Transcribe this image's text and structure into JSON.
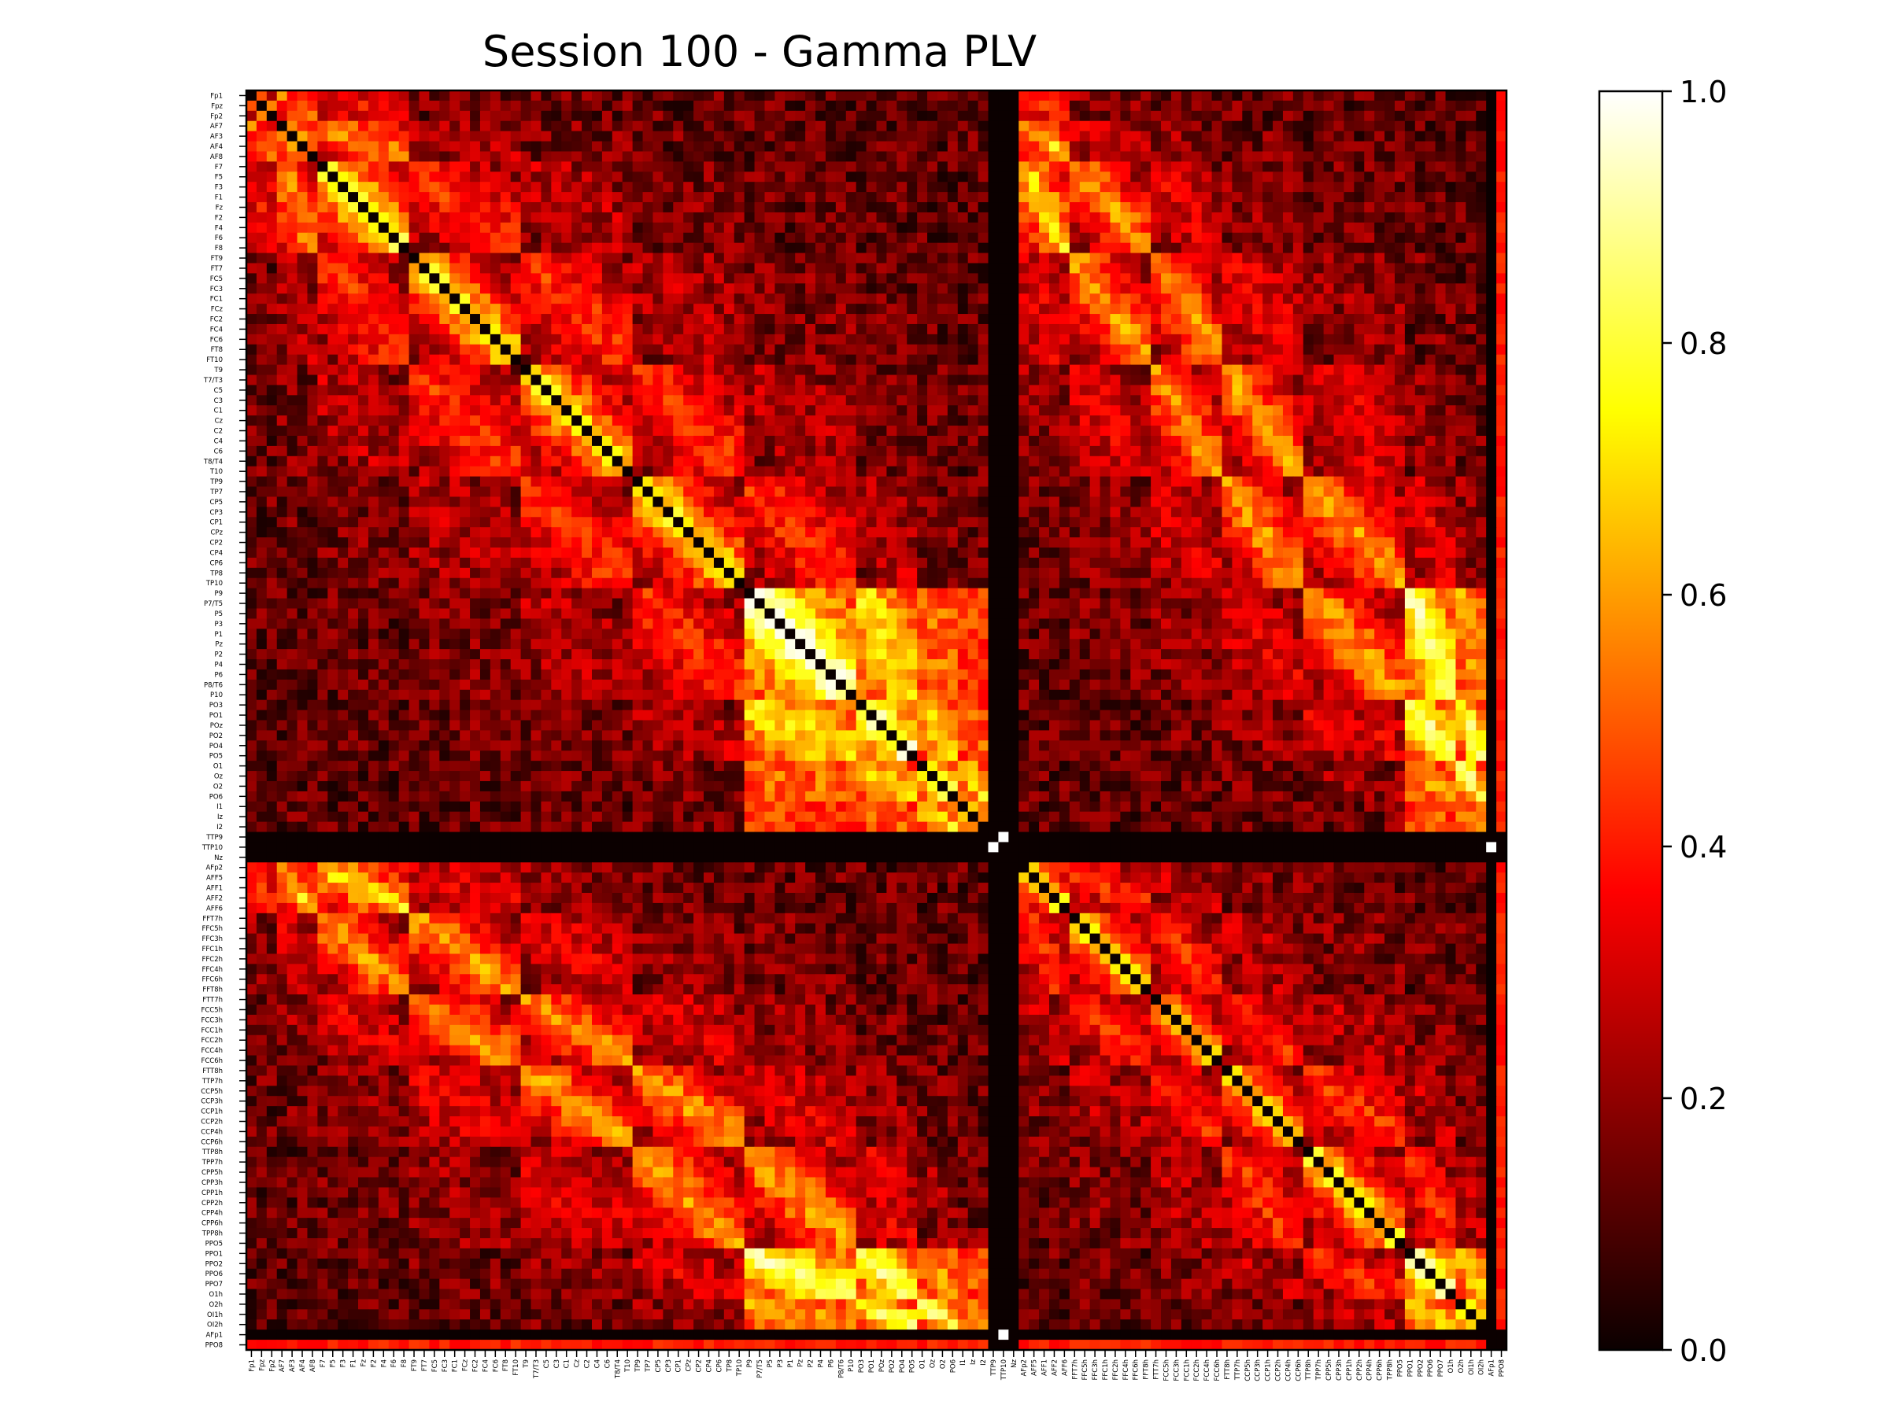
{
  "chart_data": {
    "type": "heatmap",
    "title": "Session 100 - Gamma PLV",
    "xlabel": "",
    "ylabel": "",
    "colormap": "hot",
    "vmin": 0.0,
    "vmax": 1.0,
    "colorbar": {
      "ticks": [
        0.0,
        0.2,
        0.4,
        0.6,
        0.8,
        1.0
      ],
      "tick_labels": [
        "0.0",
        "0.2",
        "0.4",
        "0.6",
        "0.8",
        "1.0"
      ]
    },
    "channels": [
      "Fp1",
      "Fpz",
      "Fp2",
      "AF7",
      "AF3",
      "AF4",
      "AF8",
      "F7",
      "F5",
      "F3",
      "F1",
      "Fz",
      "F2",
      "F4",
      "F6",
      "F8",
      "FT9",
      "FT7",
      "FC5",
      "FC3",
      "FC1",
      "FCz",
      "FC2",
      "FC4",
      "FC6",
      "FT8",
      "FT10",
      "T9",
      "T7/T3",
      "C5",
      "C3",
      "C1",
      "Cz",
      "C2",
      "C4",
      "C6",
      "T8/T4",
      "T10",
      "TP9",
      "TP7",
      "CP5",
      "CP3",
      "CP1",
      "CPz",
      "CP2",
      "CP4",
      "CP6",
      "TP8",
      "TP10",
      "P9",
      "P7/T5",
      "P5",
      "P3",
      "P1",
      "Pz",
      "P2",
      "P4",
      "P6",
      "P8/T6",
      "P10",
      "PO3",
      "PO1",
      "POz",
      "PO2",
      "PO4",
      "PO5",
      "O1",
      "Oz",
      "O2",
      "PO6",
      "I1",
      "Iz",
      "I2",
      "TTP9",
      "TTP10",
      "Nz",
      "AFp2",
      "AFF5",
      "AFF1",
      "AFF2",
      "AFF6",
      "FFT7h",
      "FFC5h",
      "FFC3h",
      "FFC1h",
      "FFC2h",
      "FFC4h",
      "FFC6h",
      "FFT8h",
      "FTT7h",
      "FCC5h",
      "FCC3h",
      "FCC1h",
      "FCC2h",
      "FCC4h",
      "FCC6h",
      "FTT8h",
      "TTP7h",
      "CCP5h",
      "CCP3h",
      "CCP1h",
      "CCP2h",
      "CCP4h",
      "CCP6h",
      "TTP8h",
      "TPP7h",
      "CPP5h",
      "CPP3h",
      "CPP1h",
      "CPP2h",
      "CPP4h",
      "CPP6h",
      "TPP8h",
      "PPO5",
      "PPO1",
      "PPO2",
      "PPO6",
      "PPO7",
      "O1h",
      "O2h",
      "OI1h",
      "OI2h",
      "AFp1",
      "PPO8"
    ],
    "note_values": "Matrix values are estimated from the colour map; values are symmetric PLV in [0,1]. Rows/columns 73-75 (TTP9, TTP10, Nz) are 0 except a 1.0 block at 73-74; column/row 122 (AFp1) is 0 except 1.0 with row/col 74; row/col 123 (PPO8) ~0.4."
  }
}
